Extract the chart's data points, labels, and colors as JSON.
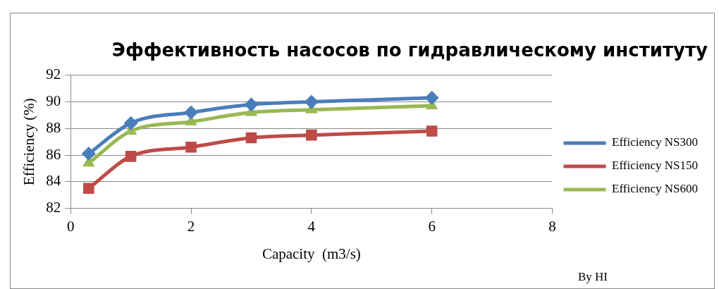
{
  "chart_data": {
    "type": "line",
    "title": "Эффективность насосов по гидравлическому институту",
    "xlabel": "Capacity  (m3/s)",
    "ylabel": "Efficiency (%)",
    "annotations": [
      "By HI"
    ],
    "x": [
      0.3,
      1,
      2,
      3,
      4,
      6
    ],
    "series": [
      {
        "name": "Efficiency NS300",
        "color": "#4a7ebb",
        "marker": "diamond",
        "values": [
          86.1,
          88.4,
          89.2,
          89.8,
          90.0,
          90.3
        ]
      },
      {
        "name": "Efficiency NS150",
        "color": "#be4b48",
        "marker": "square",
        "values": [
          83.5,
          85.9,
          86.6,
          87.3,
          87.5,
          87.8
        ]
      },
      {
        "name": "Efficiency NS600",
        "color": "#98b954",
        "marker": "triangle",
        "values": [
          85.4,
          87.8,
          88.5,
          89.2,
          89.4,
          89.7
        ]
      }
    ],
    "xlim": [
      0,
      8
    ],
    "xticks": [
      0,
      2,
      4,
      6,
      8
    ],
    "ylim": [
      82,
      92
    ],
    "yticks": [
      82,
      84,
      86,
      88,
      90,
      92
    ],
    "grid": "y",
    "legend": "right",
    "line_style": "solid"
  }
}
